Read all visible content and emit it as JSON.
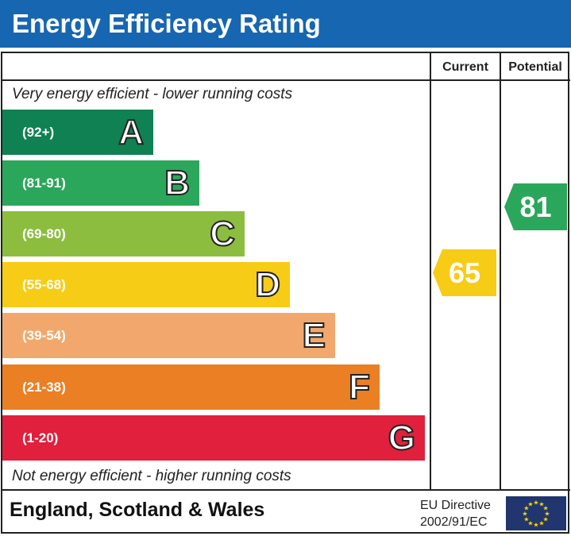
{
  "title": "Energy Efficiency Rating",
  "columns": {
    "current": "Current",
    "potential": "Potential"
  },
  "top_note": "Very energy efficient - lower running costs",
  "bottom_note": "Not energy efficient - higher running costs",
  "bands": [
    {
      "letter": "A",
      "range": "(92+)",
      "color": "#0f8152"
    },
    {
      "letter": "B",
      "range": "(81-91)",
      "color": "#2aa75a"
    },
    {
      "letter": "C",
      "range": "(69-80)",
      "color": "#8dbd3f"
    },
    {
      "letter": "D",
      "range": "(55-68)",
      "color": "#f6cc16"
    },
    {
      "letter": "E",
      "range": "(39-54)",
      "color": "#f2a86c"
    },
    {
      "letter": "F",
      "range": "(21-38)",
      "color": "#eb7f24"
    },
    {
      "letter": "G",
      "range": "(1-20)",
      "color": "#e0203c"
    }
  ],
  "current": {
    "value": "65",
    "band": "D",
    "color": "#f6cc16"
  },
  "potential": {
    "value": "81",
    "band": "B",
    "color": "#2aa75a"
  },
  "footer": {
    "region": "England, Scotland & Wales",
    "directive_line1": "EU Directive",
    "directive_line2": "2002/91/EC"
  }
}
